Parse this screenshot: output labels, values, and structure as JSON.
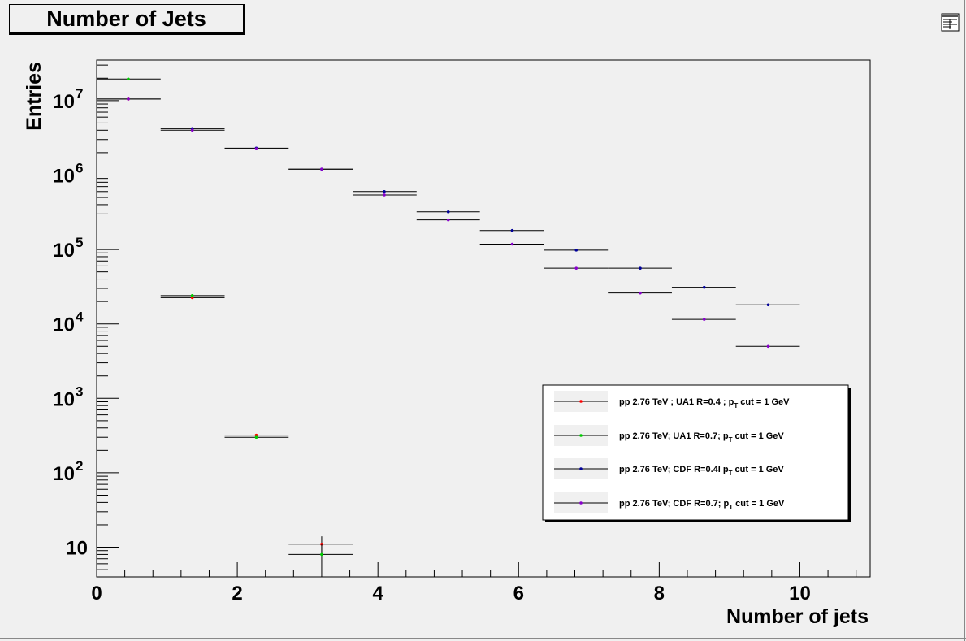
{
  "window": {
    "title": "Number of Jets",
    "editor_icon": "canvas-editor-icon"
  },
  "chart_data": {
    "type": "scatter",
    "title": "Number of Jets",
    "xlabel": "Number of jets",
    "ylabel": "Entries",
    "xlim": [
      0,
      11
    ],
    "ylim": [
      4,
      35000000
    ],
    "yscale": "log",
    "grid": false,
    "legend_position": "bottom-right",
    "x_ticks": [
      "0",
      "2",
      "4",
      "6",
      "8",
      "10"
    ],
    "y_ticks": [
      {
        "base": "10",
        "exp": "",
        "value": 10
      },
      {
        "base": "10",
        "exp": "2",
        "value": 100
      },
      {
        "base": "10",
        "exp": "3",
        "value": 1000
      },
      {
        "base": "10",
        "exp": "4",
        "value": 10000
      },
      {
        "base": "10",
        "exp": "5",
        "value": 100000
      },
      {
        "base": "10",
        "exp": "6",
        "value": 1000000
      },
      {
        "base": "10",
        "exp": "7",
        "value": 10000000
      }
    ],
    "series": [
      {
        "name": "pp 2.76 TeV ; UA1 R=0.4 ; p",
        "name_sub": "T",
        "name_tail": " cut = 1 GeV",
        "color": "#ff0000",
        "x": [
          0.45,
          1.36,
          2.27,
          3.2
        ],
        "x_low": [
          0.0,
          0.91,
          1.82,
          2.73
        ],
        "x_high": [
          0.91,
          1.82,
          2.73,
          3.64
        ],
        "y": [
          10500000,
          22500,
          320,
          11
        ],
        "y_err": [
          0,
          0,
          0,
          3
        ]
      },
      {
        "name": "pp 2.76 TeV; UA1 R=0.7; p",
        "name_sub": "T",
        "name_tail": " cut = 1 GeV",
        "color": "#00cc00",
        "x": [
          0.45,
          1.36,
          2.27,
          3.2
        ],
        "x_low": [
          0.0,
          0.91,
          1.82,
          2.73
        ],
        "x_high": [
          0.91,
          1.82,
          2.73,
          3.64
        ],
        "y": [
          19500000,
          24000,
          300,
          8
        ],
        "y_err": [
          0,
          0,
          0,
          3
        ]
      },
      {
        "name": "pp 2.76 TeV; CDF R=0.4l p",
        "name_sub": "T",
        "name_tail": " cut = 1 GeV",
        "color": "#000099",
        "x": [
          1.36,
          2.27,
          3.2,
          4.09,
          5.0,
          5.91,
          6.82,
          7.73,
          8.64,
          9.55
        ],
        "x_low": [
          0.91,
          1.82,
          2.73,
          3.64,
          4.55,
          5.45,
          6.36,
          7.27,
          8.18,
          9.09
        ],
        "x_high": [
          1.82,
          2.73,
          3.64,
          4.55,
          5.45,
          6.36,
          7.27,
          8.18,
          9.09,
          10.0
        ],
        "y": [
          4200000,
          2300000,
          1200000,
          600000,
          320000,
          180000,
          98000,
          56000,
          31000,
          18000
        ],
        "y_err": [
          0,
          0,
          0,
          0,
          0,
          0,
          0,
          0,
          0,
          0
        ]
      },
      {
        "name": "pp 2.76 TeV; CDF R=0.7; p",
        "name_sub": "T",
        "name_tail": " cut = 1 GeV",
        "color": "#8800cc",
        "x": [
          0.45,
          1.36,
          2.27,
          3.2,
          4.09,
          5.0,
          5.91,
          6.82,
          7.73,
          8.64,
          9.55
        ],
        "x_low": [
          0.0,
          0.91,
          1.82,
          2.73,
          3.64,
          4.55,
          5.45,
          6.36,
          7.27,
          8.18,
          9.09
        ],
        "x_high": [
          0.91,
          1.82,
          2.73,
          3.64,
          4.55,
          5.45,
          6.36,
          7.27,
          8.18,
          9.09,
          10.0
        ],
        "y": [
          10500000,
          4000000,
          2250000,
          1200000,
          540000,
          250000,
          118000,
          56000,
          26000,
          11500,
          5000
        ],
        "y_err": [
          0,
          0,
          0,
          0,
          0,
          0,
          0,
          0,
          0,
          0,
          0
        ]
      }
    ]
  }
}
